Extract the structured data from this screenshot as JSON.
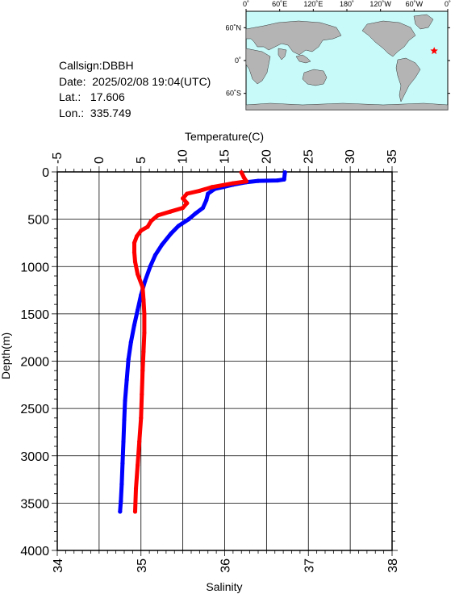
{
  "station": {
    "callsign_label": "Callsign:",
    "callsign": "DBBH",
    "date_label": "Date:",
    "date": "2025/02/08 19:04(UTC)",
    "lat_label": "Lat.:",
    "lat": "17.606",
    "lon_label": "Lon.:",
    "lon": "335.749"
  },
  "map": {
    "ocean_color": "#c8fafa",
    "land_color": "#b4b4b4",
    "marker_color": "#ff0000",
    "marker_icon": "star-icon",
    "top_labels": [
      "0˚",
      "60˚E",
      "120˚E",
      "180˚",
      "120˚W",
      "60˚W",
      "0˚"
    ],
    "side_labels": [
      "60˚N",
      "0˚",
      "60˚S"
    ],
    "marker_position": {
      "lon": 335.749,
      "lat": 17.606
    }
  },
  "chart_data": {
    "type": "line",
    "title": "",
    "top_axis": {
      "label": "Temperature(C)",
      "range": [
        -5,
        35
      ],
      "ticks": [
        "-5",
        "0",
        "5",
        "10",
        "15",
        "20",
        "25",
        "30",
        "35"
      ]
    },
    "bottom_axis": {
      "label": "Salinity",
      "range": [
        34,
        38
      ],
      "ticks": [
        "34",
        "35",
        "36",
        "37",
        "38"
      ]
    },
    "y_axis": {
      "label": "Depth(m)",
      "range": [
        0,
        4000
      ],
      "inverted": true,
      "ticks": [
        "0",
        "500",
        "1000",
        "1500",
        "2000",
        "2500",
        "3000",
        "3500",
        "4000"
      ]
    },
    "grid": true,
    "series": [
      {
        "color": "#0000ff",
        "axis": "temperature",
        "points": [
          [
            22.2,
            5
          ],
          [
            22.1,
            80
          ],
          [
            21.3,
            90
          ],
          [
            19.0,
            95
          ],
          [
            17.5,
            110
          ],
          [
            16.0,
            135
          ],
          [
            14.8,
            160
          ],
          [
            13.8,
            180
          ],
          [
            13.0,
            230
          ],
          [
            12.8,
            300
          ],
          [
            12.4,
            380
          ],
          [
            11.5,
            440
          ],
          [
            10.7,
            500
          ],
          [
            9.5,
            570
          ],
          [
            8.6,
            650
          ],
          [
            7.5,
            770
          ],
          [
            6.7,
            880
          ],
          [
            6.1,
            1000
          ],
          [
            5.5,
            1150
          ],
          [
            5.0,
            1300
          ],
          [
            4.6,
            1460
          ],
          [
            4.2,
            1620
          ],
          [
            3.8,
            1800
          ],
          [
            3.5,
            1980
          ],
          [
            3.3,
            2200
          ],
          [
            3.1,
            2420
          ],
          [
            3.0,
            2620
          ],
          [
            2.9,
            2850
          ],
          [
            2.8,
            3080
          ],
          [
            2.7,
            3300
          ],
          [
            2.6,
            3480
          ],
          [
            2.5,
            3590
          ]
        ]
      },
      {
        "color": "#ff0000",
        "axis": "salinity",
        "points": [
          [
            36.2,
            5
          ],
          [
            36.23,
            60
          ],
          [
            36.26,
            100
          ],
          [
            36.1,
            120
          ],
          [
            35.85,
            160
          ],
          [
            35.7,
            200
          ],
          [
            35.55,
            230
          ],
          [
            35.5,
            280
          ],
          [
            35.55,
            330
          ],
          [
            35.5,
            380
          ],
          [
            35.35,
            420
          ],
          [
            35.2,
            460
          ],
          [
            35.12,
            520
          ],
          [
            35.08,
            580
          ],
          [
            35.0,
            620
          ],
          [
            34.95,
            680
          ],
          [
            34.92,
            750
          ],
          [
            34.92,
            850
          ],
          [
            34.93,
            950
          ],
          [
            34.96,
            1080
          ],
          [
            35.02,
            1220
          ],
          [
            35.03,
            1350
          ],
          [
            35.04,
            1500
          ],
          [
            35.04,
            1700
          ],
          [
            35.03,
            1900
          ],
          [
            35.02,
            2100
          ],
          [
            35.01,
            2350
          ],
          [
            35.0,
            2600
          ],
          [
            34.98,
            2850
          ],
          [
            34.96,
            3100
          ],
          [
            34.94,
            3350
          ],
          [
            34.93,
            3590
          ]
        ]
      }
    ]
  }
}
